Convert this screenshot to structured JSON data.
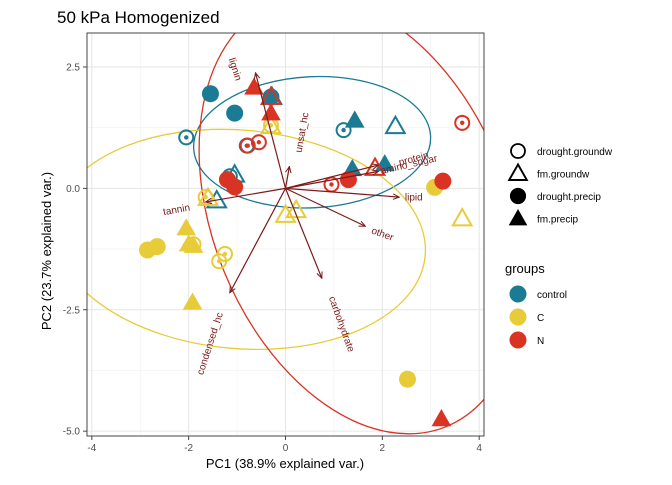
{
  "chart_data": {
    "type": "scatter",
    "title": "50 kPa Homogenized",
    "xlabel": "PC1 (38.9% explained var.)",
    "ylabel": "PC2 (23.7% explained var.)",
    "xlim": [
      -4.1,
      4.1
    ],
    "ylim": [
      -5.1,
      3.2
    ],
    "xticks": [
      -4,
      -2,
      0,
      2,
      4
    ],
    "yticks": [
      -5.0,
      -2.5,
      0.0,
      2.5
    ],
    "xtick_labels": [
      "-4",
      "-2",
      "0",
      "2",
      "4"
    ],
    "ytick_labels": [
      "-5.0",
      "-2.5",
      "0.0",
      "2.5"
    ],
    "grid": true,
    "legend_shape": {
      "entries": [
        {
          "label": "drought.groundw",
          "shape": "circle-dot-open"
        },
        {
          "label": "fm.groundw",
          "shape": "triangle-open"
        },
        {
          "label": "drought.precip",
          "shape": "circle-filled"
        },
        {
          "label": "fm.precip",
          "shape": "triangle-filled"
        }
      ]
    },
    "legend_groups": {
      "title": "groups",
      "entries": [
        {
          "label": "control",
          "color": "#1b7a94"
        },
        {
          "label": "C",
          "color": "#e8cb39"
        },
        {
          "label": "N",
          "color": "#d93423"
        }
      ]
    },
    "colors": {
      "control": "#1b7a94",
      "C": "#e8cb39",
      "N": "#d93423",
      "arrow": "#7a1a1a"
    },
    "points": [
      {
        "x": -1.55,
        "y": 1.95,
        "group": "control",
        "shape": "circle-filled"
      },
      {
        "x": -1.05,
        "y": 1.55,
        "group": "control",
        "shape": "circle-filled"
      },
      {
        "x": -0.3,
        "y": 1.88,
        "group": "control",
        "shape": "circle-filled"
      },
      {
        "x": -2.05,
        "y": 1.05,
        "group": "control",
        "shape": "circle-dot-open"
      },
      {
        "x": -0.8,
        "y": 0.88,
        "group": "control",
        "shape": "circle-dot-open"
      },
      {
        "x": 1.2,
        "y": 1.2,
        "group": "control",
        "shape": "circle-dot-open"
      },
      {
        "x": -1.15,
        "y": 0.25,
        "group": "control",
        "shape": "circle-dot-open"
      },
      {
        "x": -0.28,
        "y": 1.88,
        "group": "control",
        "shape": "triangle-open"
      },
      {
        "x": 2.27,
        "y": 1.28,
        "group": "control",
        "shape": "triangle-open"
      },
      {
        "x": -1.05,
        "y": 0.28,
        "group": "control",
        "shape": "triangle-open"
      },
      {
        "x": -1.42,
        "y": -0.25,
        "group": "control",
        "shape": "triangle-open"
      },
      {
        "x": 1.43,
        "y": 1.4,
        "group": "control",
        "shape": "triangle-filled"
      },
      {
        "x": 1.38,
        "y": 0.4,
        "group": "control",
        "shape": "triangle-filled"
      },
      {
        "x": 2.05,
        "y": 0.5,
        "group": "control",
        "shape": "triangle-filled"
      },
      {
        "x": -2.85,
        "y": -1.27,
        "group": "C",
        "shape": "circle-filled"
      },
      {
        "x": -2.65,
        "y": -1.2,
        "group": "C",
        "shape": "circle-filled"
      },
      {
        "x": 3.08,
        "y": 0.02,
        "group": "C",
        "shape": "circle-filled"
      },
      {
        "x": 2.52,
        "y": -3.93,
        "group": "C",
        "shape": "circle-filled"
      },
      {
        "x": -1.9,
        "y": -1.15,
        "group": "C",
        "shape": "circle-dot-open"
      },
      {
        "x": -1.25,
        "y": -1.35,
        "group": "C",
        "shape": "circle-dot-open"
      },
      {
        "x": -1.37,
        "y": -1.5,
        "group": "C",
        "shape": "circle-dot-open"
      },
      {
        "x": -1.65,
        "y": -0.18,
        "group": "C",
        "shape": "circle-dot-open"
      },
      {
        "x": -0.3,
        "y": 1.3,
        "group": "C",
        "shape": "circle-dot-open"
      },
      {
        "x": -1.6,
        "y": -0.2,
        "group": "C",
        "shape": "triangle-open"
      },
      {
        "x": -0.3,
        "y": 1.28,
        "group": "C",
        "shape": "triangle-open"
      },
      {
        "x": 0.22,
        "y": -0.45,
        "group": "C",
        "shape": "triangle-open"
      },
      {
        "x": 0.0,
        "y": -0.55,
        "group": "C",
        "shape": "triangle-open"
      },
      {
        "x": 3.65,
        "y": -0.62,
        "group": "C",
        "shape": "triangle-open"
      },
      {
        "x": -2.05,
        "y": -0.82,
        "group": "C",
        "shape": "triangle-filled"
      },
      {
        "x": -2.0,
        "y": -1.15,
        "group": "C",
        "shape": "triangle-filled"
      },
      {
        "x": -1.9,
        "y": -1.18,
        "group": "C",
        "shape": "triangle-filled"
      },
      {
        "x": -1.92,
        "y": -2.35,
        "group": "C",
        "shape": "triangle-filled"
      },
      {
        "x": -1.2,
        "y": 0.18,
        "group": "N",
        "shape": "circle-filled"
      },
      {
        "x": -1.05,
        "y": 0.03,
        "group": "N",
        "shape": "circle-filled"
      },
      {
        "x": 1.3,
        "y": 0.18,
        "group": "N",
        "shape": "circle-filled"
      },
      {
        "x": 3.25,
        "y": 0.15,
        "group": "N",
        "shape": "circle-filled"
      },
      {
        "x": -0.55,
        "y": 0.95,
        "group": "N",
        "shape": "circle-dot-open"
      },
      {
        "x": -0.78,
        "y": 0.88,
        "group": "N",
        "shape": "circle-dot-open"
      },
      {
        "x": 0.95,
        "y": 0.08,
        "group": "N",
        "shape": "circle-dot-open"
      },
      {
        "x": 3.65,
        "y": 1.35,
        "group": "N",
        "shape": "circle-dot-open"
      },
      {
        "x": -0.3,
        "y": 1.88,
        "group": "N",
        "shape": "triangle-open"
      },
      {
        "x": 1.85,
        "y": 0.42,
        "group": "N",
        "shape": "triangle-open"
      },
      {
        "x": -0.65,
        "y": 2.08,
        "group": "N",
        "shape": "triangle-filled"
      },
      {
        "x": -0.3,
        "y": 1.55,
        "group": "N",
        "shape": "triangle-filled"
      },
      {
        "x": 3.22,
        "y": -4.75,
        "group": "N",
        "shape": "triangle-filled"
      }
    ],
    "ellipses": [
      {
        "group": "control",
        "cx": 0.55,
        "cy": 0.95,
        "rx": 2.45,
        "ry": 1.35,
        "angle": 3
      },
      {
        "group": "C",
        "cx": -0.95,
        "cy": -1.05,
        "rx": 3.85,
        "ry": 2.25,
        "angle": -5
      },
      {
        "group": "N",
        "cx": 1.55,
        "cy": -0.55,
        "rx": 3.05,
        "ry": 4.7,
        "angle": 22
      }
    ],
    "arrows": [
      {
        "name": "lignin",
        "x": -0.62,
        "y": 2.38,
        "label_x": -1.05,
        "label_y": 2.45,
        "rotate": 72
      },
      {
        "name": "unsat_hc",
        "x": 0.08,
        "y": 0.45,
        "label_x": 0.35,
        "label_y": 1.15,
        "rotate": -80
      },
      {
        "name": "protein",
        "x": 1.92,
        "y": 0.48,
        "label_x": 2.65,
        "label_y": 0.6,
        "rotate": -15
      },
      {
        "name": "amino_sugar",
        "x": 1.92,
        "y": 0.35,
        "label_x": 2.55,
        "label_y": 0.48,
        "rotate": -13
      },
      {
        "name": "lipid",
        "x": 2.35,
        "y": -0.18,
        "label_x": 2.65,
        "label_y": -0.2,
        "rotate": 0
      },
      {
        "name": "other",
        "x": 1.65,
        "y": -0.78,
        "label_x": 2.0,
        "label_y": -0.95,
        "rotate": 20
      },
      {
        "name": "tannin",
        "x": -1.65,
        "y": -0.28,
        "label_x": -2.25,
        "label_y": -0.45,
        "rotate": -10
      },
      {
        "name": "carbohydrate",
        "x": 0.75,
        "y": -1.85,
        "label_x": 1.15,
        "label_y": -2.8,
        "rotate": 70
      },
      {
        "name": "condensed_hc",
        "x": -1.15,
        "y": -2.15,
        "label_x": -1.55,
        "label_y": -3.2,
        "rotate": -72
      }
    ]
  }
}
